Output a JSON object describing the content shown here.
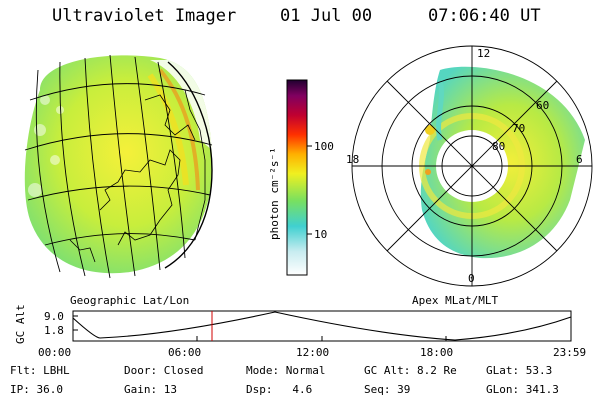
{
  "header": {
    "instrument": "Ultraviolet Imager",
    "date": "01 Jul 00",
    "time": "07:06:40 UT"
  },
  "colorbar": {
    "unit_label": "photon cm⁻²s⁻¹",
    "ticks": [
      "100",
      "10"
    ]
  },
  "left_panel": {
    "caption": "Geographic Lat/Lon"
  },
  "right_panel": {
    "caption": "Apex MLat/MLT",
    "mlt_labels": [
      "12",
      "18",
      "6",
      "0"
    ],
    "mlat_labels": [
      "60",
      "70",
      "80"
    ]
  },
  "timeline": {
    "ylabel": "GC Alt",
    "yticks": [
      "9.0",
      "1.8"
    ],
    "xticks": [
      "00:00",
      "06:00",
      "12:00",
      "18:00",
      "23:59"
    ],
    "marker_time": "07:06:40"
  },
  "info": {
    "filter": {
      "label": "Flt:",
      "value": "LBHL"
    },
    "ip": {
      "label": "IP:",
      "value": "36.0"
    },
    "door": {
      "label": "Door:",
      "value": "Closed"
    },
    "gain": {
      "label": "Gain:",
      "value": "13"
    },
    "mode": {
      "label": "Mode:",
      "value": "Normal"
    },
    "dsp": {
      "label": "Dsp:",
      "value": "4.6"
    },
    "gc_alt": {
      "label": "GC Alt:",
      "value": "8.2 Re"
    },
    "seq": {
      "label": "Seq:",
      "value": "39"
    },
    "glat": {
      "label": "GLat:",
      "value": "53.3"
    },
    "glon": {
      "label": "GLon:",
      "value": "341.3"
    }
  }
}
